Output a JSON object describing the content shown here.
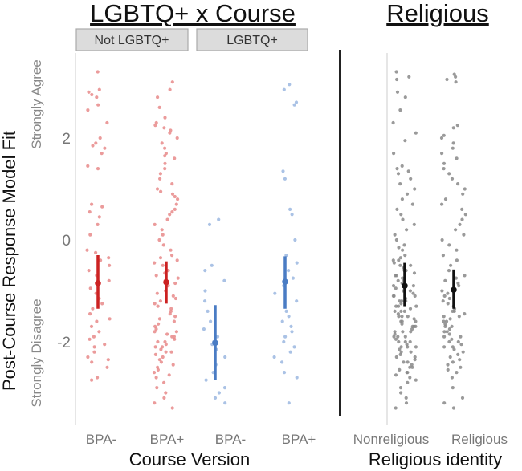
{
  "chart_data": [
    {
      "type": "scatter",
      "title": "LGBTQ+ x Course",
      "xlabel": "Course Version",
      "ylabel": "Post-Course Response Model Fit",
      "y_anchor_labels": {
        "top": "Strongly Agree",
        "bottom": "Strongly Disagree"
      },
      "yticks": [
        2,
        0,
        -2
      ],
      "ylim": [
        -3.6,
        3.7
      ],
      "facets": [
        {
          "label": "Not LGBTQ+",
          "categories": [
            "BPA-",
            "BPA+"
          ],
          "color": "#cc2222",
          "point_color": "#e88a8a"
        },
        {
          "label": "LGBTQ+",
          "categories": [
            "BPA-",
            "BPA+"
          ],
          "color": "#4a7cc4",
          "point_color": "#9bb7e0"
        }
      ],
      "series": [
        {
          "facet": "Not LGBTQ+",
          "category": "BPA-",
          "mean": -0.85,
          "ci": [
            -1.35,
            -0.3
          ],
          "n_points": 50,
          "points": [
            3.3,
            2.95,
            2.9,
            2.85,
            2.8,
            2.65,
            2.55,
            2.3,
            2.0,
            1.9,
            1.85,
            1.8,
            1.7,
            1.45,
            1.4,
            0.7,
            0.65,
            0.55,
            0.45,
            0.3,
            0.1,
            -0.2,
            -0.35,
            -0.5,
            -0.6,
            -0.7,
            -0.8,
            -0.95,
            -1.05,
            -1.15,
            -1.25,
            -1.35,
            -1.45,
            -1.55,
            -1.6,
            -1.7,
            -1.8,
            -1.9,
            -1.95,
            -2.05,
            -2.1,
            -2.2,
            -2.3,
            -2.35,
            -2.4,
            -2.5,
            -2.7,
            -2.75,
            -0.4,
            -0.25
          ]
        },
        {
          "facet": "Not LGBTQ+",
          "category": "BPA+",
          "mean": -0.83,
          "ci": [
            -1.25,
            -0.42
          ],
          "n_points": 95,
          "points": [
            3.1,
            2.95,
            2.8,
            2.6,
            2.4,
            2.3,
            2.25,
            2.2,
            2.15,
            2.1,
            2.0,
            1.9,
            1.8,
            1.7,
            1.65,
            1.6,
            1.5,
            1.4,
            1.3,
            1.2,
            1.1,
            1.0,
            0.95,
            0.9,
            0.85,
            0.8,
            0.7,
            0.6,
            0.55,
            0.5,
            0.4,
            0.3,
            0.2,
            0.1,
            0.0,
            -0.1,
            -0.2,
            -0.3,
            -0.35,
            -0.4,
            -0.45,
            -0.5,
            -0.6,
            -0.65,
            -0.7,
            -0.75,
            -0.8,
            -0.85,
            -0.9,
            -1.0,
            -1.05,
            -1.1,
            -1.15,
            -1.2,
            -1.25,
            -1.3,
            -1.35,
            -1.4,
            -1.45,
            -1.5,
            -1.55,
            -1.6,
            -1.65,
            -1.7,
            -1.75,
            -1.8,
            -1.85,
            -1.9,
            -1.95,
            -2.0,
            -2.05,
            -2.1,
            -2.15,
            -2.2,
            -2.25,
            -2.3,
            -2.35,
            -2.4,
            -2.45,
            -2.5,
            -2.55,
            -2.6,
            -2.65,
            -2.7,
            -2.8,
            -2.9,
            -3.0,
            -3.1,
            -3.2,
            -3.3,
            -2.0,
            -1.9,
            -2.1,
            -1.8,
            -2.2
          ]
        },
        {
          "facet": "LGBTQ+",
          "category": "BPA-",
          "mean": -2.02,
          "ci": [
            -2.75,
            -1.28
          ],
          "n_points": 22,
          "points": [
            0.4,
            0.3,
            -0.5,
            -0.6,
            -0.8,
            -1.0,
            -1.2,
            -1.4,
            -1.6,
            -1.75,
            -1.9,
            -2.0,
            -2.05,
            -2.15,
            -2.3,
            -2.45,
            -2.6,
            -2.75,
            -2.9,
            -3.0,
            -3.1,
            -3.2
          ]
        },
        {
          "facet": "LGBTQ+",
          "category": "BPA+",
          "mean": -0.82,
          "ci": [
            -1.35,
            -0.32
          ],
          "n_points": 30,
          "points": [
            3.05,
            2.95,
            2.7,
            2.65,
            1.35,
            1.2,
            0.6,
            0.5,
            0.0,
            -0.3,
            -0.45,
            -0.6,
            -0.75,
            -0.9,
            -1.05,
            -1.2,
            -1.4,
            -1.5,
            -1.6,
            -1.7,
            -1.8,
            -1.9,
            -2.0,
            -2.1,
            -2.2,
            -2.3,
            -2.4,
            -2.6,
            -2.7,
            -3.2
          ]
        }
      ]
    },
    {
      "type": "scatter",
      "title": "Religious",
      "xlabel": "Religious identity",
      "ylim": [
        -3.6,
        3.7
      ],
      "categories": [
        "Nonreligious",
        "Religious"
      ],
      "color": "#111111",
      "point_color": "#888888",
      "series": [
        {
          "category": "Nonreligious",
          "mean": -0.9,
          "ci": [
            -1.3,
            -0.45
          ],
          "n_points": 120,
          "points": [
            3.3,
            3.2,
            3.15,
            2.9,
            2.8,
            2.55,
            2.3,
            2.1,
            1.95,
            1.7,
            1.45,
            1.4,
            1.35,
            1.3,
            1.2,
            1.1,
            1.0,
            0.9,
            0.8,
            0.7,
            0.6,
            0.5,
            0.4,
            0.3,
            0.2,
            0.1,
            0.0,
            -0.1,
            -0.15,
            -0.2,
            -0.3,
            -0.35,
            -0.4,
            -0.45,
            -0.5,
            -0.55,
            -0.6,
            -0.65,
            -0.7,
            -0.75,
            -0.8,
            -0.85,
            -0.9,
            -0.95,
            -1.0,
            -1.05,
            -1.1,
            -1.15,
            -1.2,
            -1.25,
            -1.3,
            -1.35,
            -1.4,
            -1.45,
            -1.5,
            -1.55,
            -1.6,
            -1.65,
            -1.7,
            -1.75,
            -1.8,
            -1.85,
            -1.9,
            -1.95,
            -2.0,
            -2.05,
            -2.1,
            -2.15,
            -2.2,
            -2.25,
            -2.3,
            -2.35,
            -2.4,
            -2.45,
            -2.5,
            -2.55,
            -2.6,
            -2.65,
            -2.7,
            -2.75,
            -2.8,
            -2.9,
            -3.0,
            -3.1,
            -3.2,
            -3.3,
            -1.6,
            -1.7,
            -1.8,
            -1.9,
            -2.0,
            -2.1,
            -1.5,
            -1.4,
            -1.3,
            -1.2,
            -1.1,
            -2.2,
            -2.3,
            -2.4,
            -0.9,
            -1.0,
            -1.8,
            -1.7,
            -1.6,
            -1.5,
            -2.0,
            -1.9,
            -2.1,
            -1.4,
            -1.3,
            -2.5,
            -2.6,
            -1.2,
            -1.1,
            -0.8,
            -0.7,
            -0.6,
            -0.5,
            -0.4
          ]
        },
        {
          "category": "Religious",
          "mean": -0.98,
          "ci": [
            -1.35,
            -0.58
          ],
          "n_points": 85,
          "points": [
            3.25,
            3.2,
            3.15,
            3.1,
            2.25,
            2.2,
            2.05,
            2.0,
            1.9,
            1.8,
            1.7,
            1.6,
            1.5,
            1.4,
            1.3,
            1.2,
            1.1,
            1.0,
            0.9,
            0.8,
            0.7,
            0.6,
            0.5,
            0.4,
            0.3,
            0.2,
            0.1,
            0.0,
            -0.1,
            -0.2,
            -0.3,
            -0.4,
            -0.5,
            -0.6,
            -0.7,
            -0.75,
            -0.8,
            -0.85,
            -0.9,
            -1.0,
            -1.05,
            -1.1,
            -1.15,
            -1.2,
            -1.25,
            -1.3,
            -1.35,
            -1.4,
            -1.45,
            -1.5,
            -1.55,
            -1.6,
            -1.65,
            -1.7,
            -1.75,
            -1.8,
            -1.85,
            -1.9,
            -1.95,
            -2.0,
            -2.05,
            -2.1,
            -2.15,
            -2.2,
            -2.25,
            -2.3,
            -2.35,
            -2.4,
            -2.45,
            -2.5,
            -2.55,
            -2.6,
            -2.7,
            -2.9,
            -3.1,
            -3.2,
            -3.3,
            -1.7,
            -1.8,
            -1.9,
            -2.0,
            -1.6,
            -1.5,
            -2.1,
            -1.4
          ]
        }
      ]
    }
  ]
}
